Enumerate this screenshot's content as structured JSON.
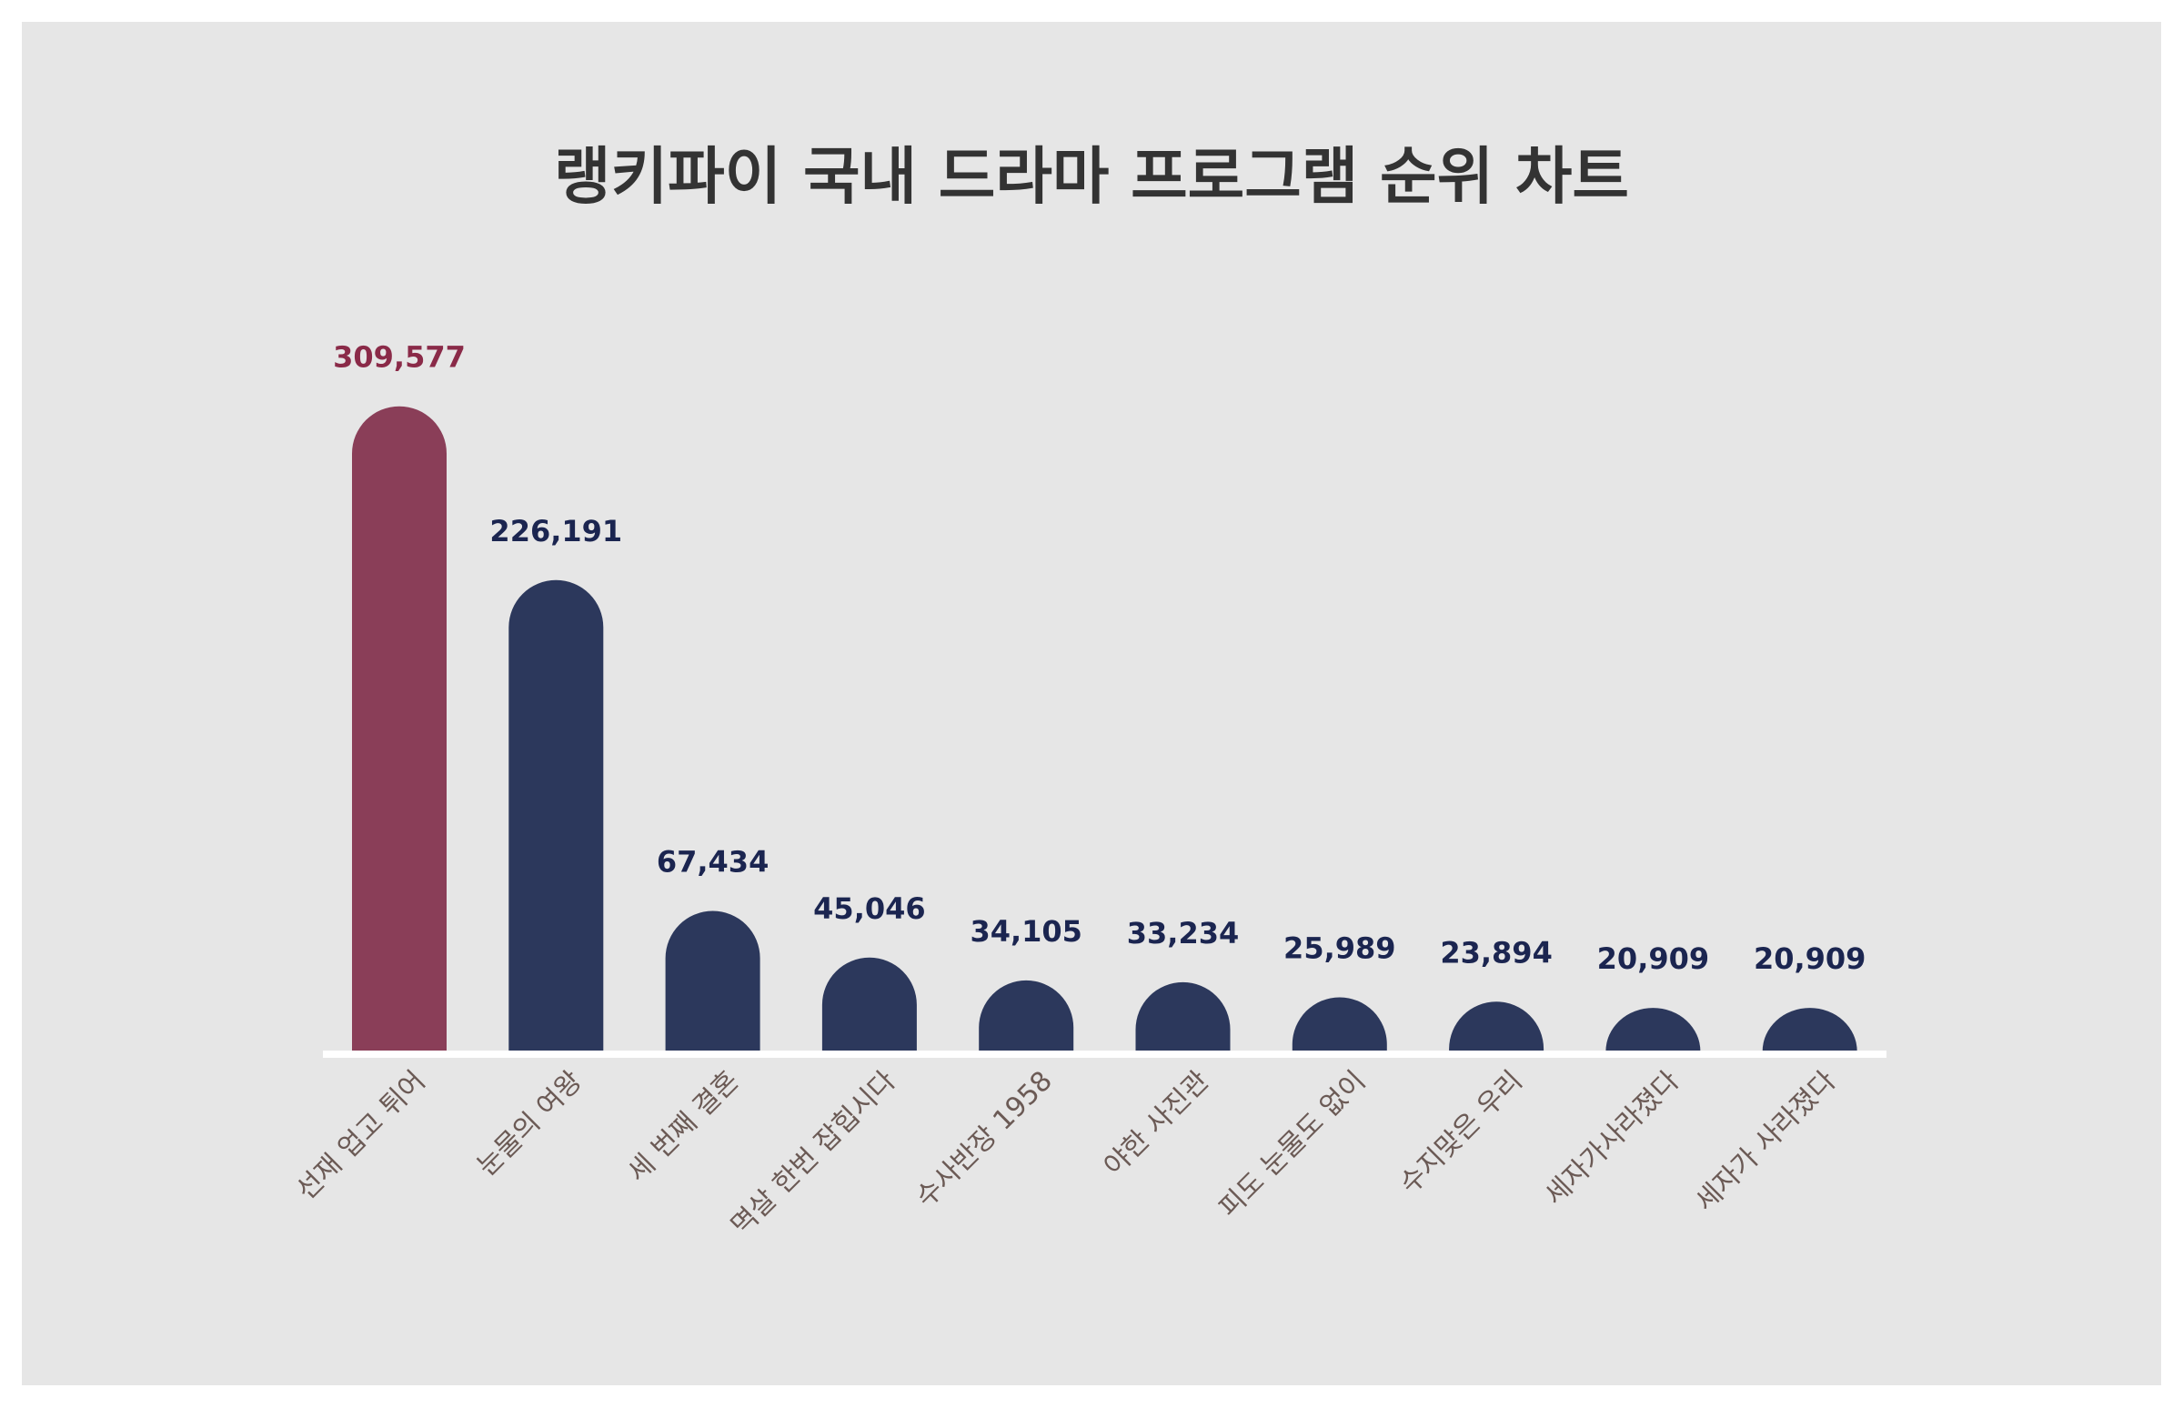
{
  "chart_data": {
    "type": "bar",
    "title": "랭키파이 국내 드라마 프로그램 순위 차트",
    "categories": [
      "선재 업고 튀어",
      "눈물의 여왕",
      "세 번째 결혼",
      "멱살 한번 잡힙시다",
      "수사반장 1958",
      "야한 사진관",
      "피도 눈물도 없이",
      "수지맞은 우리",
      "세자가사라졌다",
      "세자가 사라졌다"
    ],
    "values": [
      309577,
      226191,
      67434,
      45046,
      34105,
      33234,
      25989,
      23894,
      20909,
      20909
    ],
    "value_labels": [
      "309,577",
      "226,191",
      "67,434",
      "45,046",
      "34,105",
      "33,234",
      "25,989",
      "23,894",
      "20,909",
      "20,909"
    ],
    "colors": [
      "#8a3e58",
      "#2c385c",
      "#2c385c",
      "#2c385c",
      "#2c385c",
      "#2c385c",
      "#2c385c",
      "#2c385c",
      "#2c385c",
      "#2c385c"
    ],
    "label_colors": [
      "#8a2a48",
      "#1b2550",
      "#1b2550",
      "#1b2550",
      "#1b2550",
      "#1b2550",
      "#1b2550",
      "#1b2550",
      "#1b2550",
      "#1b2550"
    ],
    "ylim": [
      0,
      340000
    ]
  }
}
